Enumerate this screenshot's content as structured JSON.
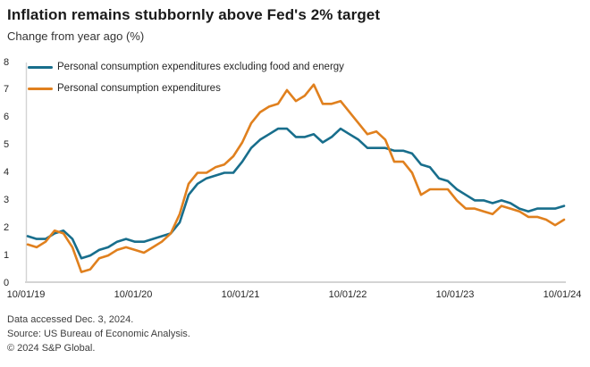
{
  "header": {
    "title": "Inflation remains stubbornly above Fed's 2% target",
    "subtitle": "Change from year ago (%)"
  },
  "footer": {
    "lines": [
      "Data accessed Dec. 3, 2024.",
      "Source: US Bureau of Economic Analysis.",
      "© 2024 S&P Global."
    ]
  },
  "colors": {
    "core_line": "#186e8c",
    "headline_line": "#e0801e",
    "axis": "#d4d4d4",
    "text_dark": "#1a1a1a",
    "text_medium": "#333333"
  },
  "chart_data": {
    "type": "line",
    "title": "Inflation remains stubbornly above Fed's 2% target",
    "ylabel": "Change from year ago (%)",
    "ylim": [
      0,
      8
    ],
    "y_ticks": [
      0,
      1,
      2,
      3,
      4,
      5,
      6,
      7,
      8
    ],
    "x_tick_labels": [
      "10/01/19",
      "10/01/20",
      "10/01/21",
      "10/01/22",
      "10/01/23",
      "10/01/24"
    ],
    "x_start": "10/01/19",
    "x_end": "10/01/24",
    "frequency": "monthly",
    "grid": false,
    "legend_position": "top-left",
    "series": [
      {
        "name": "Personal consumption expenditures excluding food and energy",
        "color": "#186e8c",
        "values": [
          1.7,
          1.6,
          1.6,
          1.8,
          1.9,
          1.6,
          0.9,
          1.0,
          1.2,
          1.3,
          1.5,
          1.6,
          1.5,
          1.5,
          1.6,
          1.7,
          1.8,
          2.2,
          3.2,
          3.6,
          3.8,
          3.9,
          4.0,
          4.0,
          4.4,
          4.9,
          5.2,
          5.4,
          5.6,
          5.6,
          5.3,
          5.3,
          5.4,
          5.1,
          5.3,
          5.6,
          5.4,
          5.2,
          4.9,
          4.9,
          4.9,
          4.8,
          4.8,
          4.7,
          4.3,
          4.2,
          3.8,
          3.7,
          3.4,
          3.2,
          3.0,
          3.0,
          2.9,
          3.0,
          2.9,
          2.7,
          2.6,
          2.7,
          2.7,
          2.7,
          2.8
        ]
      },
      {
        "name": "Personal consumption expenditures",
        "color": "#e0801e",
        "values": [
          1.4,
          1.3,
          1.5,
          1.9,
          1.8,
          1.3,
          0.4,
          0.5,
          0.9,
          1.0,
          1.2,
          1.3,
          1.2,
          1.1,
          1.3,
          1.5,
          1.8,
          2.5,
          3.6,
          4.0,
          4.0,
          4.2,
          4.3,
          4.6,
          5.1,
          5.8,
          6.2,
          6.4,
          6.5,
          7.0,
          6.6,
          6.8,
          7.2,
          6.5,
          6.5,
          6.6,
          6.2,
          5.8,
          5.4,
          5.5,
          5.2,
          4.4,
          4.4,
          4.0,
          3.2,
          3.4,
          3.4,
          3.4,
          3.0,
          2.7,
          2.7,
          2.6,
          2.5,
          2.8,
          2.7,
          2.6,
          2.4,
          2.4,
          2.3,
          2.1,
          2.3
        ]
      }
    ]
  }
}
